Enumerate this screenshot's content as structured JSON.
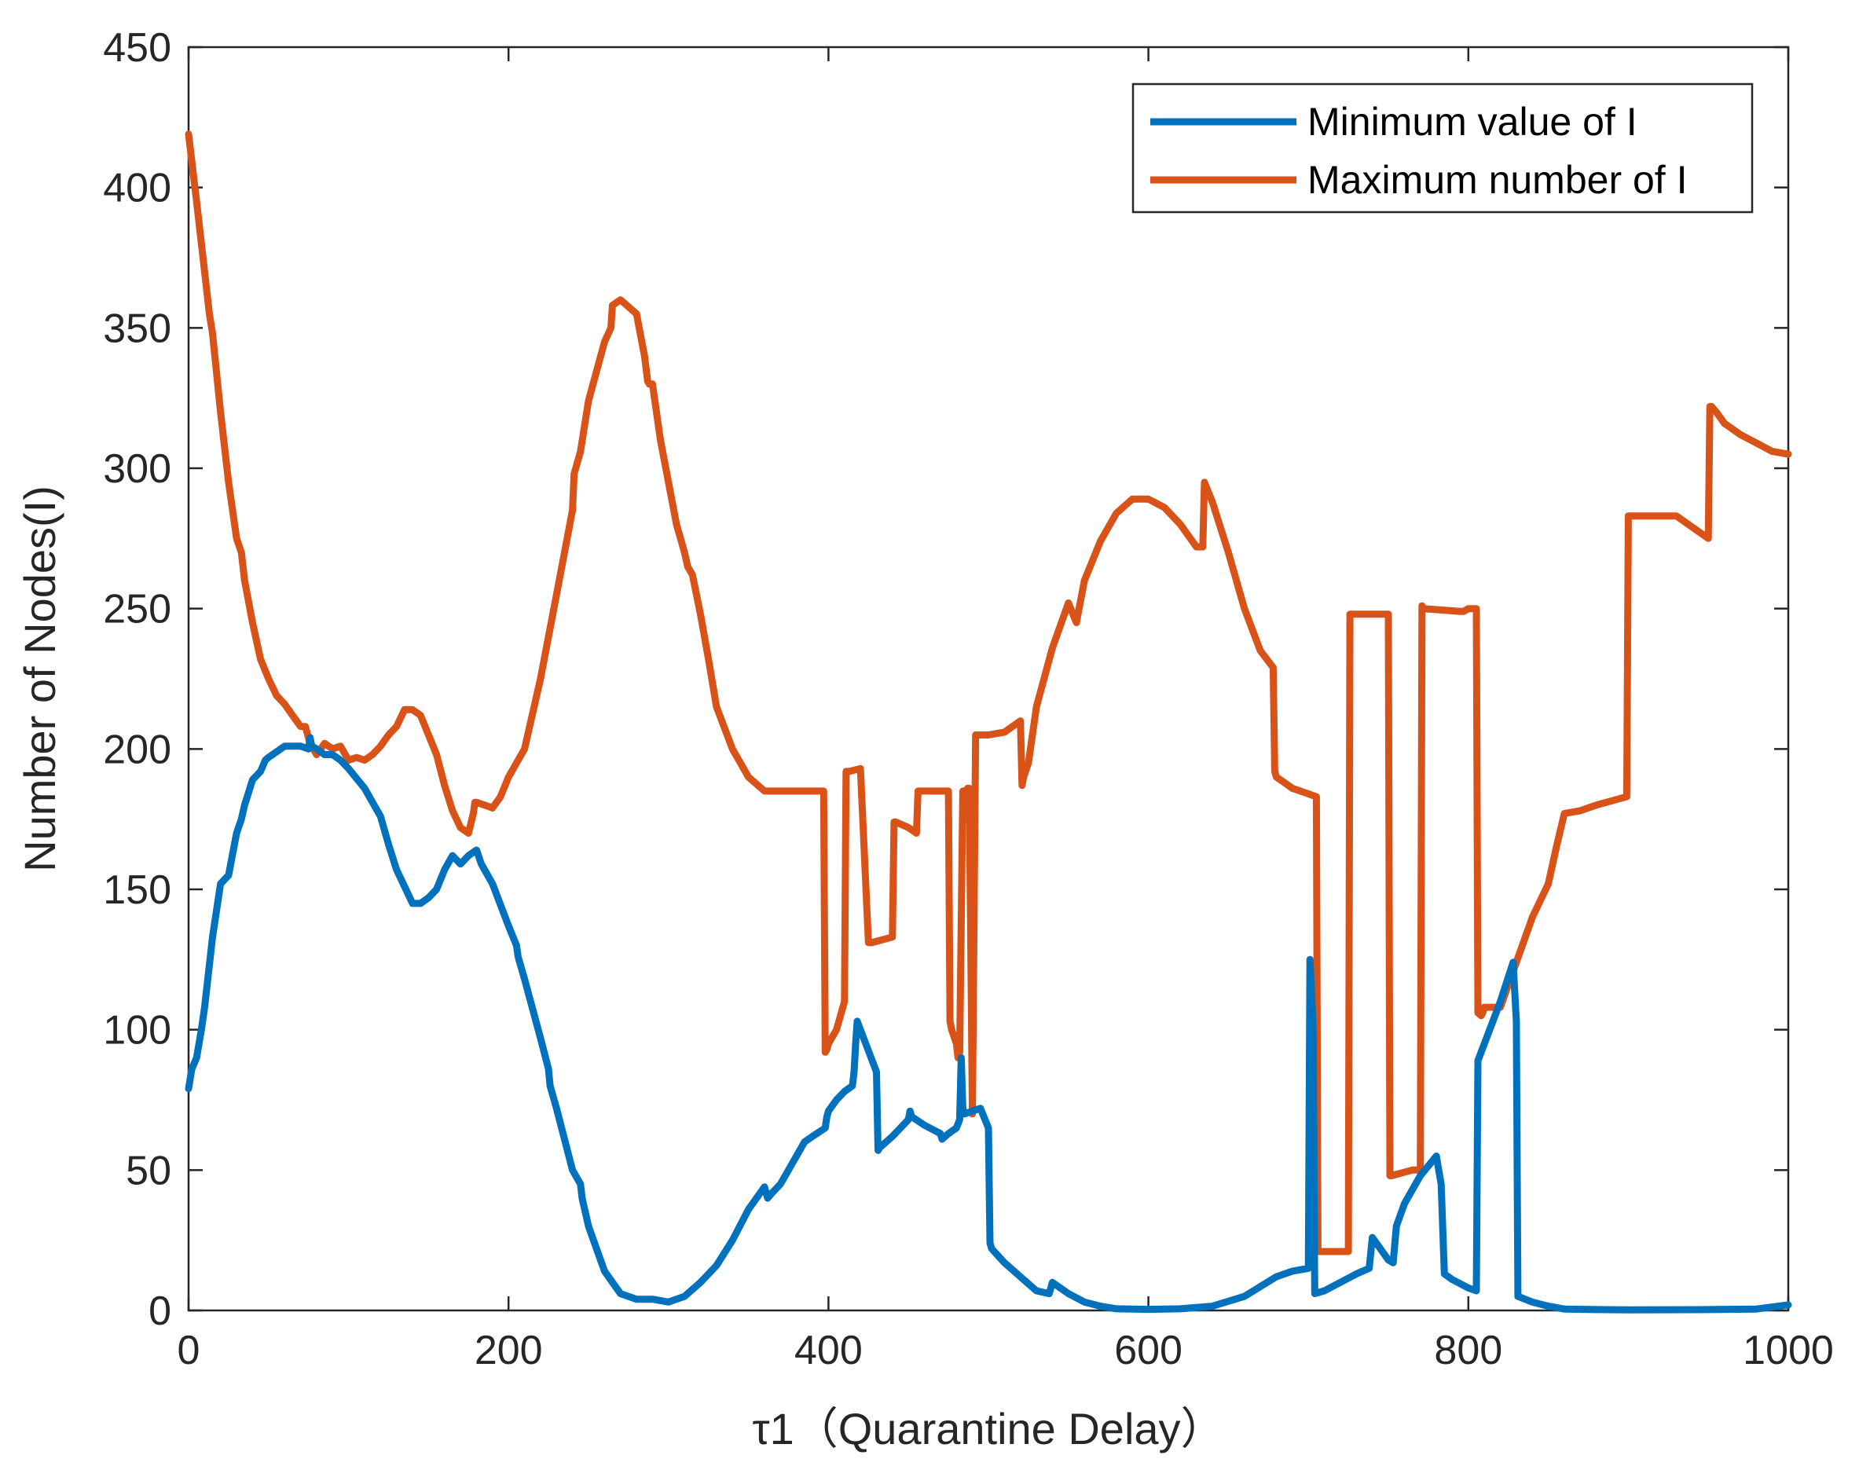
{
  "chart_data": {
    "type": "line",
    "title": "",
    "xlabel": "τ1（Quarantine Delay）",
    "ylabel": "Number of Nodes(I)",
    "xlim": [
      0,
      1000
    ],
    "ylim": [
      0,
      450
    ],
    "xticks": [
      0,
      200,
      400,
      600,
      800,
      1000
    ],
    "yticks": [
      0,
      50,
      100,
      150,
      200,
      250,
      300,
      350,
      400,
      450
    ],
    "legend_position": "top-right",
    "series": [
      {
        "name": "Minimum value of I",
        "color": "#0072BD",
        "x": [
          0,
          2,
          5,
          8,
          10,
          15,
          20,
          25,
          30,
          33,
          35,
          40,
          45,
          48,
          50,
          55,
          60,
          65,
          70,
          75,
          76,
          77,
          80,
          85,
          90,
          95,
          100,
          110,
          115,
          120,
          125,
          130,
          135,
          140,
          145,
          150,
          155,
          160,
          165,
          170,
          175,
          180,
          183,
          185,
          190,
          200,
          205,
          206,
          210,
          220,
          225,
          226,
          230,
          240,
          245,
          246,
          250,
          260,
          270,
          280,
          290,
          300,
          310,
          320,
          330,
          340,
          350,
          360,
          362,
          365,
          370,
          380,
          385,
          390,
          398,
          399,
          400,
          405,
          410,
          415,
          416,
          417,
          418,
          420,
          430,
          431,
          432,
          440,
          450,
          451,
          452,
          460,
          470,
          471,
          475,
          480,
          482,
          483,
          484,
          485,
          490,
          495,
          500,
          501,
          502,
          510,
          520,
          530,
          538,
          540,
          545,
          550,
          560,
          570,
          580,
          600,
          620,
          640,
          660,
          680,
          690,
          700,
          701,
          703,
          704,
          710,
          720,
          730,
          738,
          740,
          745,
          750,
          753,
          755,
          760,
          770,
          780,
          783,
          785,
          790,
          800,
          805,
          806,
          810,
          820,
          828,
          830,
          831,
          840,
          850,
          860,
          880,
          900,
          950,
          980,
          1000
        ],
        "values": [
          79,
          86,
          90,
          100,
          108,
          133,
          152,
          155,
          170,
          175,
          180,
          189,
          192,
          196,
          197,
          199,
          201,
          201,
          201,
          200,
          204,
          201,
          200,
          198,
          198,
          196,
          193,
          186,
          181,
          176,
          166,
          157,
          151,
          145,
          145,
          147,
          150,
          157,
          162,
          159,
          162,
          164,
          159,
          157,
          152,
          137,
          130,
          126,
          118,
          97,
          86,
          80,
          72,
          50,
          45,
          40,
          30,
          14,
          6,
          4,
          4,
          3,
          5,
          10,
          16,
          25,
          36,
          44,
          40,
          42,
          45,
          55,
          60,
          62,
          65,
          69,
          71,
          75,
          78,
          80,
          85,
          95,
          103,
          100,
          85,
          57,
          58,
          62,
          68,
          71,
          69,
          66,
          63,
          61,
          63,
          65,
          68,
          90,
          72,
          70,
          71,
          72,
          65,
          24,
          22,
          17,
          12,
          7,
          6,
          10,
          8,
          6,
          3,
          1.5,
          0.6,
          0.4,
          0.6,
          1.5,
          5,
          12,
          14,
          15,
          125,
          100,
          6,
          7,
          10,
          13,
          15,
          26,
          22,
          18,
          17,
          30,
          38,
          48,
          55,
          45,
          13,
          11,
          8,
          7,
          89,
          95,
          110,
          124,
          103,
          5,
          3,
          1.5,
          0.5,
          0.3,
          0.2,
          0.3,
          0.5,
          2
        ]
      },
      {
        "name": "Maximum number of I",
        "color": "#D95319",
        "x": [
          0,
          5,
          10,
          13,
          15,
          20,
          25,
          30,
          33,
          35,
          40,
          45,
          50,
          55,
          60,
          65,
          70,
          73,
          75,
          76,
          78,
          80,
          85,
          90,
          95,
          100,
          105,
          110,
          115,
          120,
          125,
          130,
          135,
          140,
          145,
          150,
          155,
          160,
          165,
          170,
          175,
          178,
          179,
          180,
          185,
          190,
          195,
          200,
          210,
          220,
          230,
          240,
          241,
          245,
          250,
          260,
          264,
          265,
          270,
          280,
          285,
          287,
          288,
          290,
          295,
          300,
          305,
          310,
          312,
          315,
          320,
          325,
          330,
          340,
          345,
          348,
          350,
          360,
          370,
          380,
          390,
          397,
          398,
          399,
          400,
          405,
          410,
          411,
          412,
          413,
          420,
          425,
          426,
          427,
          440,
          441,
          442,
          450,
          455,
          456,
          458,
          475,
          476,
          477,
          480,
          481,
          482,
          484,
          486,
          487,
          488,
          490,
          492,
          493,
          494,
          495,
          500,
          510,
          520,
          521,
          522,
          525,
          530,
          540,
          550,
          555,
          556,
          560,
          570,
          580,
          590,
          600,
          610,
          620,
          630,
          634,
          635,
          640,
          650,
          660,
          670,
          678,
          679,
          680,
          685,
          690,
          695,
          705,
          706,
          707,
          715,
          725,
          726,
          727,
          730,
          750,
          751,
          752,
          765,
          770,
          771,
          772,
          795,
          797,
          800,
          805,
          806,
          808,
          809,
          810,
          820,
          840,
          850,
          855,
          860,
          870,
          880,
          899,
          900,
          901,
          910,
          920,
          930,
          940,
          950,
          951,
          952,
          955,
          960,
          970,
          980,
          990,
          1000
        ],
        "values": [
          419,
          395,
          370,
          355,
          348,
          320,
          295,
          275,
          270,
          260,
          245,
          232,
          225,
          219,
          216,
          212,
          208,
          208,
          204,
          201,
          200,
          198,
          202,
          200,
          201,
          196,
          197,
          196,
          198,
          201,
          205,
          208,
          214,
          214,
          212,
          205,
          198,
          187,
          178,
          172,
          170,
          177,
          181,
          181,
          180,
          179,
          183,
          190,
          200,
          225,
          255,
          285,
          298,
          306,
          324,
          345,
          350,
          358,
          360,
          355,
          340,
          331,
          330,
          330,
          310,
          295,
          280,
          270,
          265,
          262,
          248,
          232,
          215,
          200,
          195,
          192,
          190,
          185,
          185,
          185,
          185,
          185,
          92,
          93,
          95,
          100,
          110,
          192,
          192,
          192,
          193,
          131,
          131,
          131,
          133,
          174,
          174,
          172,
          170,
          185,
          185,
          185,
          103,
          100,
          95,
          90,
          92,
          185,
          185,
          186,
          186,
          70,
          205,
          205,
          205,
          205,
          205,
          206,
          210,
          187,
          190,
          195,
          215,
          236,
          252,
          245,
          248,
          260,
          274,
          284,
          289,
          289,
          286,
          280,
          272,
          272,
          295,
          288,
          270,
          250,
          235,
          229,
          192,
          190,
          188,
          186,
          185,
          183,
          22,
          21,
          21,
          21,
          248,
          248,
          248,
          248,
          48,
          48,
          50,
          50,
          251,
          250,
          249,
          249,
          250,
          250,
          106,
          105,
          106,
          108,
          108,
          140,
          152,
          165,
          177,
          178,
          180,
          183,
          283,
          283,
          283,
          283,
          283,
          279,
          275,
          322,
          322,
          320,
          316,
          312,
          309,
          306,
          305
        ]
      }
    ]
  }
}
